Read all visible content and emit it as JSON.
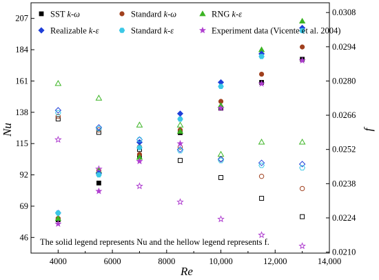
{
  "chart_data": {
    "type": "scatter",
    "xlabel": "Re",
    "ylabel_left": "Nu",
    "ylabel_right": "f",
    "xlim": [
      3000,
      14000
    ],
    "ylim_left": [
      34.5,
      218.5
    ],
    "ylim_right": [
      0.02096,
      0.0312
    ],
    "x_ticks": [
      4000,
      6000,
      8000,
      10000,
      12000,
      14000
    ],
    "x_tick_labels": [
      "4000",
      "6000",
      "8000",
      "10,000",
      "12,000",
      "14,000"
    ],
    "y_left_ticks": [
      46,
      69,
      92,
      115,
      138,
      161,
      184,
      207
    ],
    "y_left_tick_labels": [
      "46",
      "69",
      "92",
      "115",
      "138",
      "161",
      "184",
      "207"
    ],
    "y_right_ticks": [
      0.021,
      0.0224,
      0.0238,
      0.0252,
      0.0266,
      0.028,
      0.0294,
      0.0308
    ],
    "y_right_tick_labels": [
      "0.0210",
      "0.0224",
      "0.0238",
      "0.0252",
      "0.0266",
      "0.0280",
      "0.0294",
      "0.0308"
    ],
    "grid": false,
    "legend_position": "top",
    "annotation": "The solid legend represents Nu and the hellow legend represents f.",
    "x": [
      4000,
      5500,
      7000,
      8500,
      10000,
      11500,
      13000
    ],
    "series": [
      {
        "name": "SST k-ω",
        "legend_main": "SST ",
        "legend_it": "k-ω",
        "color": "#000000",
        "marker": "square",
        "nu": [
          59,
          86,
          105,
          123,
          141,
          160,
          177
        ],
        "f": [
          0.02645,
          0.0259,
          0.0252,
          0.02475,
          0.02405,
          0.0232,
          0.02245
        ]
      },
      {
        "name": "Standard k-ω",
        "legend_main": "Standard ",
        "legend_it": "k-ω",
        "color": "#a0401e",
        "marker": "circle",
        "nu": [
          60,
          95,
          107,
          125,
          146,
          166,
          186
        ],
        "f": [
          0.02655,
          0.026,
          0.0253,
          0.0253,
          0.0248,
          0.0241,
          0.0236
        ]
      },
      {
        "name": "RNG k-ε",
        "legend_main": "RNG ",
        "legend_it": "k-ε",
        "color": "#3cb424",
        "marker": "triangle",
        "nu": [
          60,
          95,
          105,
          124,
          143,
          184,
          205
        ],
        "f": [
          0.0279,
          0.0273,
          0.0262,
          0.0262,
          0.025,
          0.0255,
          0.0255
        ]
      },
      {
        "name": "Realizable k-ε",
        "legend_main": "Realizable ",
        "legend_it": "k-ε",
        "color": "#1f3fd8",
        "marker": "diamond",
        "nu": [
          64,
          93,
          116,
          137,
          160,
          181,
          200
        ],
        "f": [
          0.0268,
          0.0261,
          0.0256,
          0.0252,
          0.0248,
          0.02465,
          0.0246
        ]
      },
      {
        "name": "Standard k-ε",
        "legend_main": "Standard ",
        "legend_it": "k-ε",
        "color": "#3cc8e6",
        "marker": "hexagon",
        "nu": [
          64,
          92,
          112,
          133,
          157,
          179,
          198
        ],
        "f": [
          0.0267,
          0.02605,
          0.0256,
          0.02515,
          0.02475,
          0.02455,
          0.02445
        ]
      },
      {
        "name": "Experiment data (Vicente et al. 2004)",
        "legend_main": "Experiment data (Vicente et al. 2004)",
        "legend_it": "",
        "color": "#b040d0",
        "marker": "star",
        "nu": [
          56,
          80,
          102,
          115,
          141,
          159,
          176
        ],
        "f": [
          0.0256,
          0.0244,
          0.0237,
          0.02305,
          0.02235,
          0.0217,
          0.02125
        ]
      }
    ]
  }
}
